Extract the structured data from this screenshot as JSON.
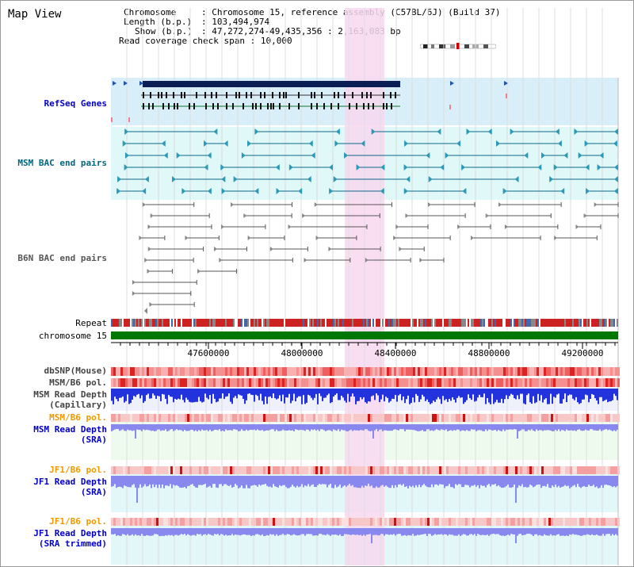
{
  "page": {
    "title": "Map View"
  },
  "header": {
    "rows": [
      {
        "key": "Chromosome",
        "value": "Chromosome 15, reference assembly (C57BL/6J) (Build 37)"
      },
      {
        "key": "Length (b.p.)",
        "value": "103,494,974"
      },
      {
        "key": "Show (b.p.)",
        "value": "47,272,274-49,435,356 : 2,163,083 bp"
      },
      {
        "key": "Read coverage check span",
        "value": "10,000"
      }
    ]
  },
  "ruler": {
    "ticks": [
      "47600000",
      "48000000",
      "48400000",
      "48800000",
      "49200000"
    ]
  },
  "tracks": {
    "refseq_genes": {
      "label": "RefSeq Genes",
      "color": "#0000cc"
    },
    "msm_bac": {
      "label": "MSM BAC end pairs",
      "color": "#006680"
    },
    "b6n_bac": {
      "label": "B6N BAC end pairs",
      "color": "#555555"
    },
    "repeat": {
      "label": "Repeat"
    },
    "chromosome": {
      "label": "chromosome 15"
    },
    "dbsnp": {
      "label": "dbSNP(Mouse)",
      "color": "#444444"
    },
    "msm_b6_pol_1": {
      "label": "MSM/B6 pol.",
      "color": "#444444"
    },
    "msm_depth_cap": {
      "line1": "MSM Read Depth",
      "line2": "(Capillary)",
      "color": "#444444"
    },
    "msm_b6_pol_2": {
      "label": "MSM/B6 pol.",
      "color": "#ee9900"
    },
    "msm_depth_sra": {
      "line1": "MSM Read Depth",
      "line2": "(SRA)",
      "color": "#0000cc"
    },
    "jf1_b6_pol_1": {
      "label": "JF1/B6 pol.",
      "color": "#ee9900"
    },
    "jf1_depth_sra": {
      "line1": "JF1 Read Depth",
      "line2": "(SRA)",
      "color": "#0000cc"
    },
    "jf1_b6_pol_2": {
      "label": "JF1/B6 pol.",
      "color": "#ee9900"
    },
    "jf1_depth_trim": {
      "line1": "JF1 Read Depth",
      "line2": "(SRA trimmed)",
      "color": "#0000cc"
    }
  },
  "colors": {
    "highlight": "#f8d8f0",
    "refseq_bg": "#d8eef8",
    "msm_bg": "#e0f8f8",
    "chromosome_bar": "#007700",
    "depth_blue": "#3344dd",
    "depth_light": "#8888ee"
  }
}
